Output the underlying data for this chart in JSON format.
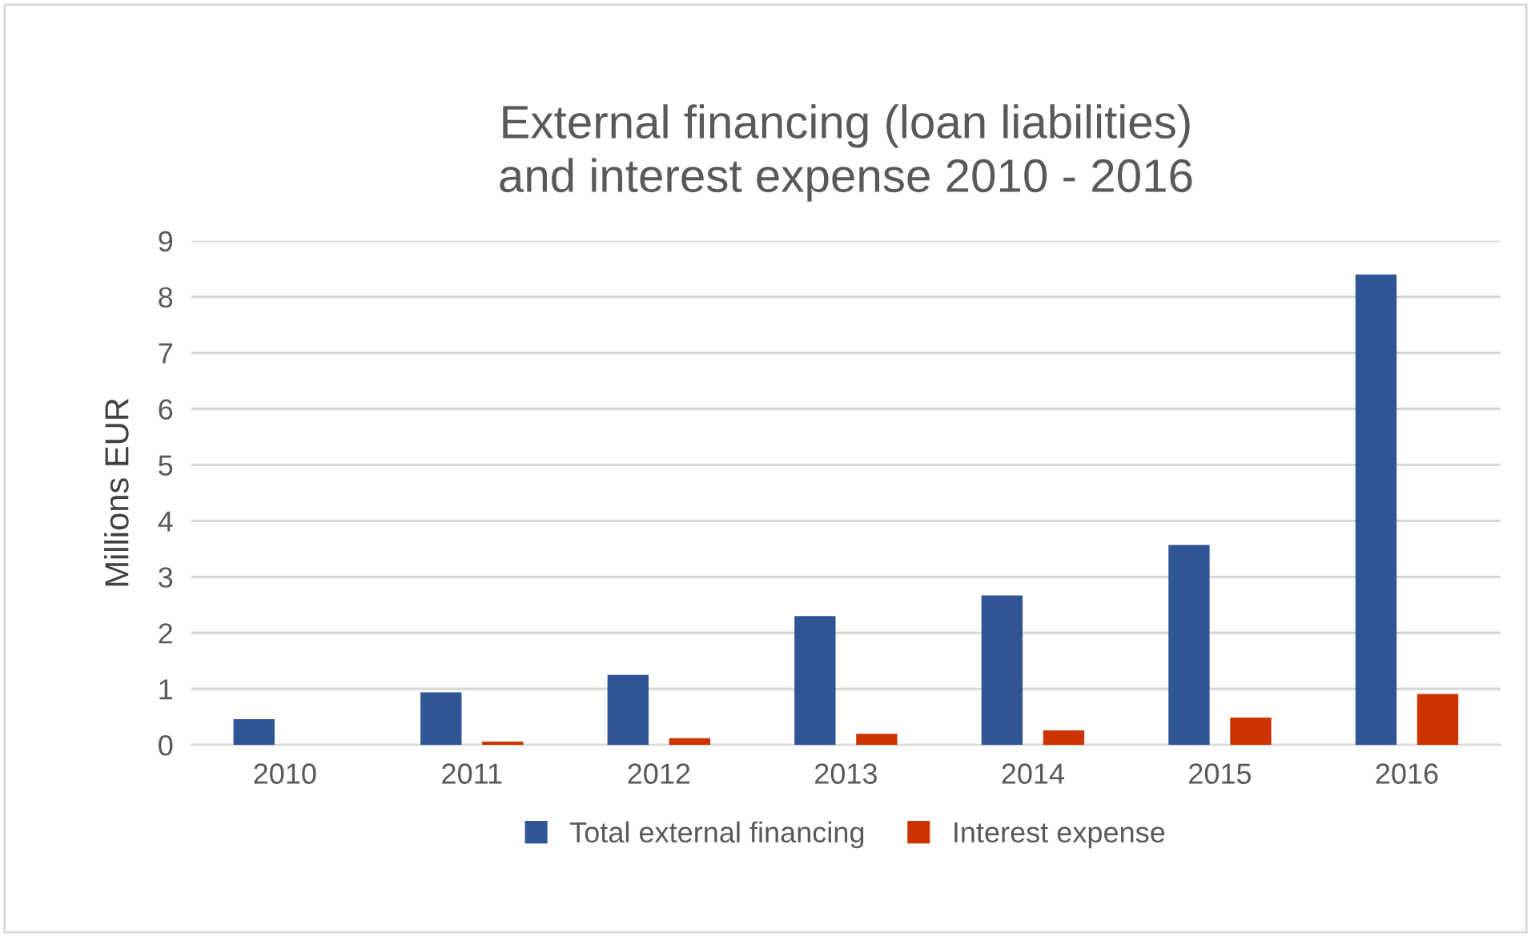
{
  "chart_data": {
    "type": "bar",
    "title": "External financing (loan liabilities)\nand interest expense 2010 - 2016",
    "ylabel": "Millions EUR",
    "categories": [
      "2010",
      "2011",
      "2012",
      "2013",
      "2014",
      "2015",
      "2016"
    ],
    "series": [
      {
        "name": "Total external financing",
        "color": "#2f5597",
        "values": [
          0.46,
          0.94,
          1.25,
          2.3,
          2.67,
          3.57,
          8.4
        ]
      },
      {
        "name": "Interest expense",
        "color": "#cc3300",
        "values": [
          0,
          0.06,
          0.12,
          0.2,
          0.26,
          0.49,
          0.91
        ]
      }
    ],
    "ylim": [
      0,
      9
    ],
    "yticks": [
      0,
      1,
      2,
      3,
      4,
      5,
      6,
      7,
      8,
      9
    ],
    "grid": "y",
    "legend": "bottom"
  }
}
